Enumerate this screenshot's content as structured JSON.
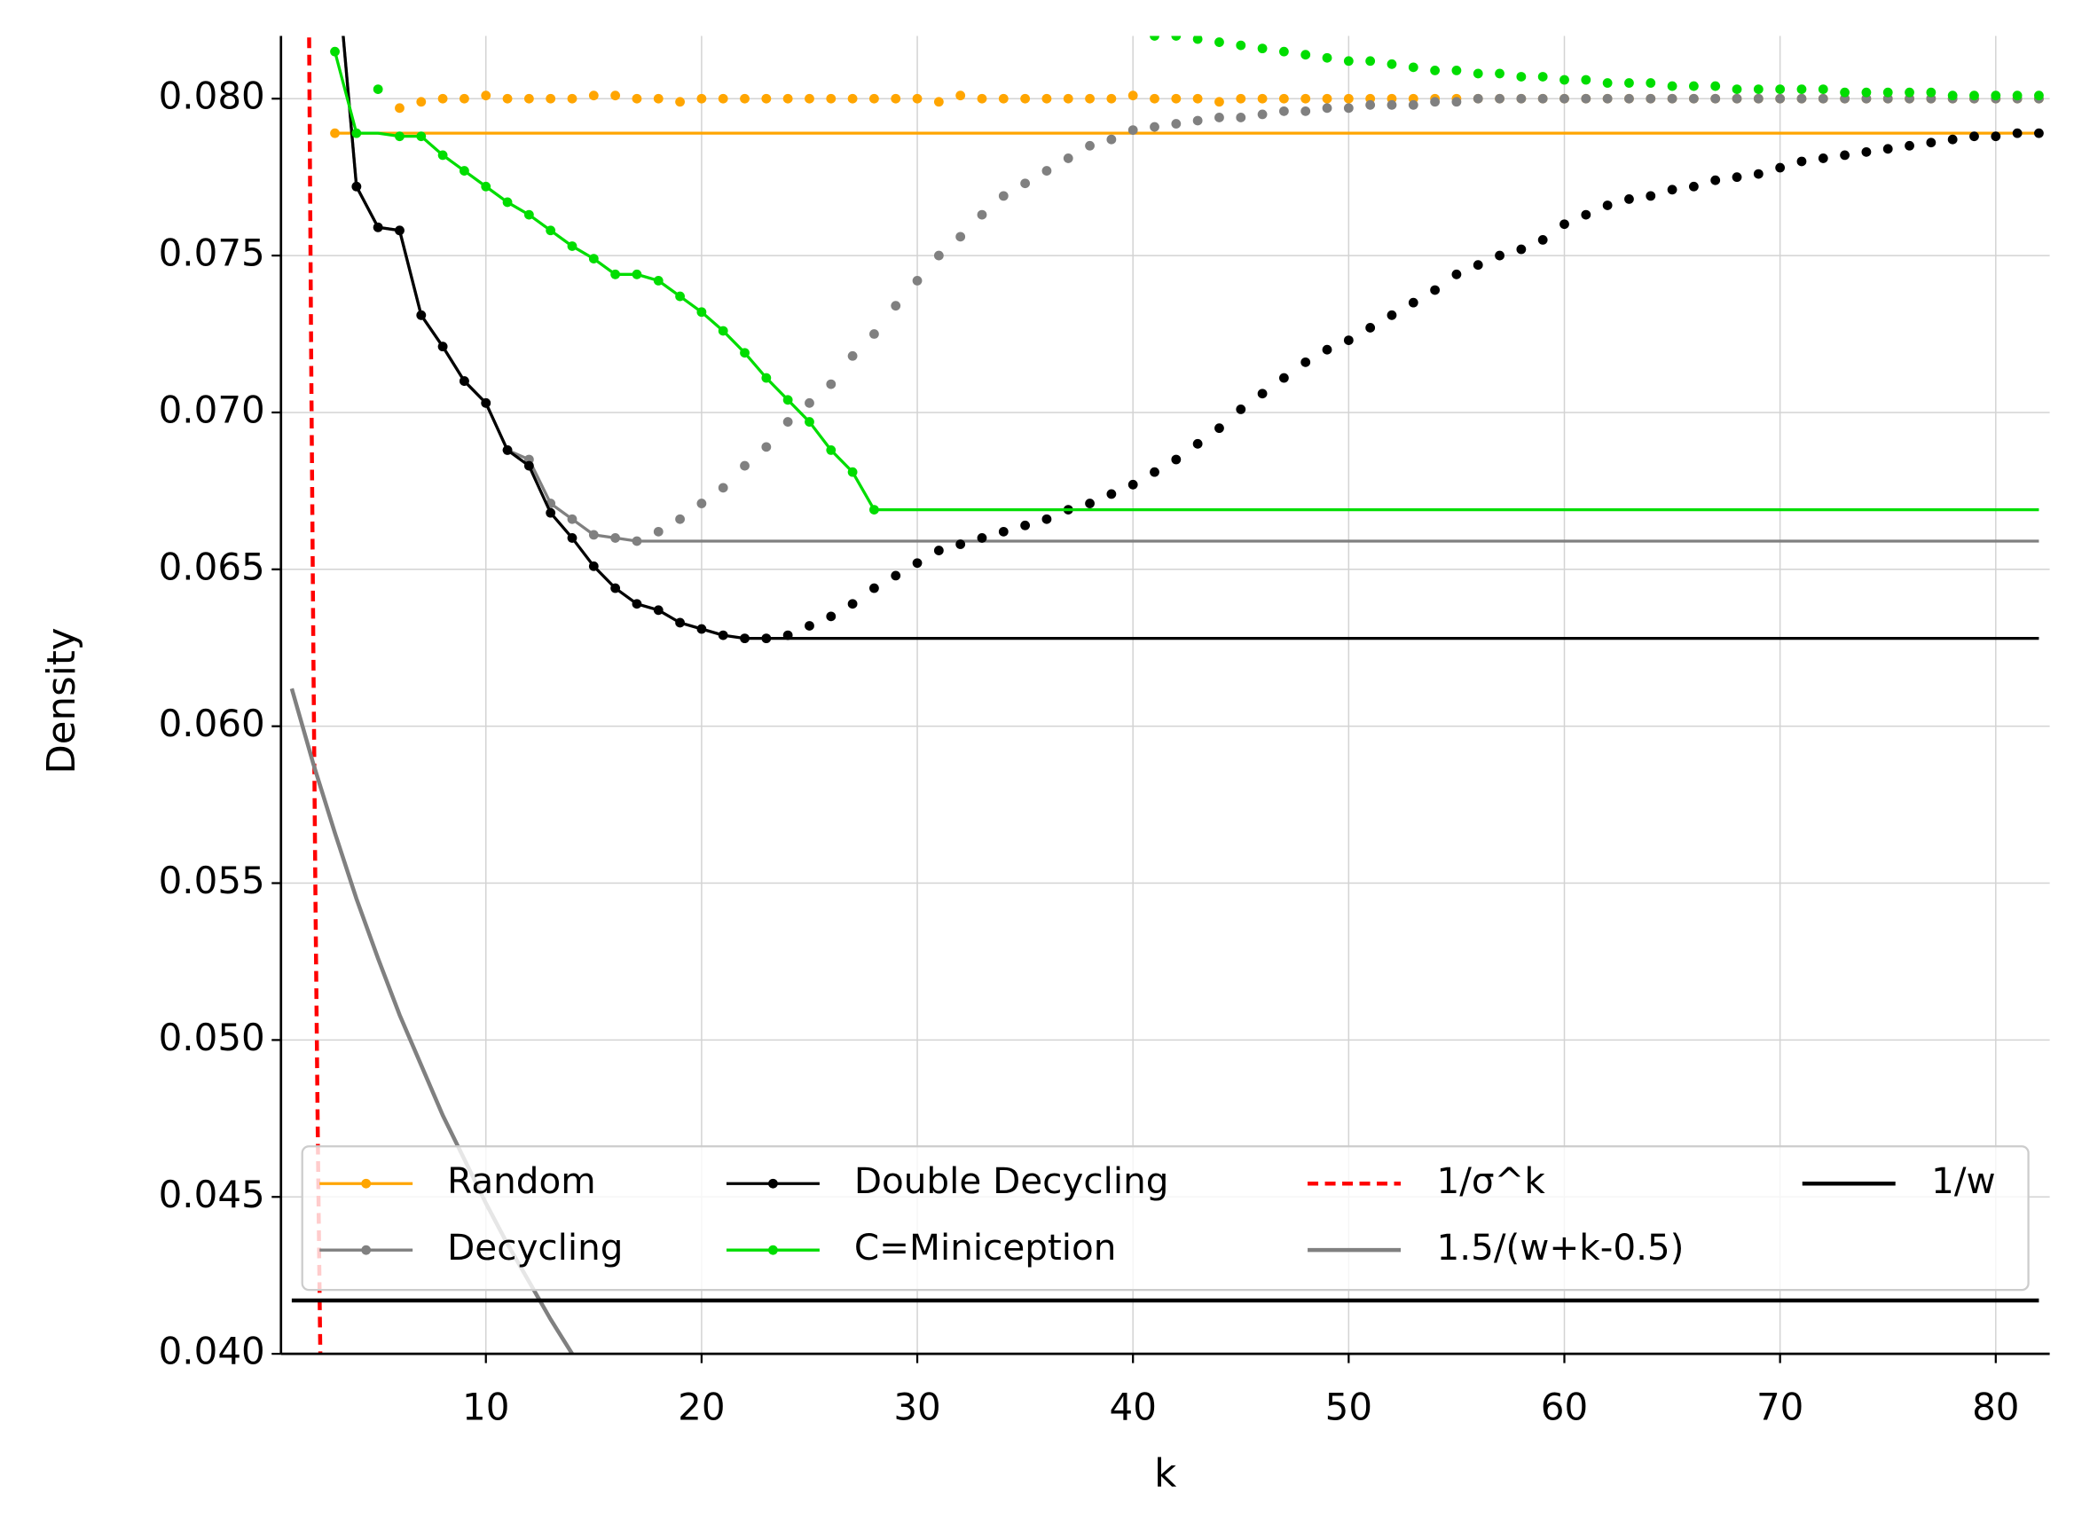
{
  "chart_data": {
    "type": "line",
    "xlabel": "k",
    "ylabel": "Density",
    "xlim": [
      0.5,
      82.5
    ],
    "ylim": [
      0.04,
      0.082
    ],
    "xticks": [
      10,
      20,
      30,
      40,
      50,
      60,
      70,
      80
    ],
    "yticks": [
      {
        "value": 0.04,
        "label": "0.040"
      },
      {
        "value": 0.045,
        "label": "0.045"
      },
      {
        "value": 0.05,
        "label": "0.050"
      },
      {
        "value": 0.055,
        "label": "0.055"
      },
      {
        "value": 0.06,
        "label": "0.060"
      },
      {
        "value": 0.065,
        "label": "0.065"
      },
      {
        "value": 0.07,
        "label": "0.070"
      },
      {
        "value": 0.075,
        "label": "0.075"
      },
      {
        "value": 0.08,
        "label": "0.080"
      }
    ],
    "grid": true,
    "legend": "lower center",
    "legend_columns": 4,
    "x": [
      3,
      4,
      5,
      6,
      7,
      8,
      9,
      10,
      11,
      12,
      13,
      14,
      15,
      16,
      17,
      18,
      19,
      20,
      21,
      22,
      23,
      24,
      25,
      26,
      27,
      28,
      29,
      30,
      31,
      32,
      33,
      34,
      35,
      36,
      37,
      38,
      39,
      40,
      41,
      42,
      43,
      44,
      45,
      46,
      47,
      48,
      49,
      50,
      51,
      52,
      53,
      54,
      55,
      56,
      57,
      58,
      59,
      60,
      61,
      62,
      63,
      64,
      65,
      66,
      67,
      68,
      69,
      70,
      71,
      72,
      73,
      74,
      75,
      76,
      77,
      78,
      79,
      80,
      81,
      82
    ],
    "series": [
      {
        "name": "Random",
        "color": "#ffa500",
        "style": "markers",
        "values": [
          0.0789,
          null,
          null,
          0.0797,
          0.0799,
          0.08,
          0.08,
          0.0801,
          0.08,
          0.08,
          0.08,
          0.08,
          0.0801,
          0.0801,
          0.08,
          0.08,
          0.0799,
          0.08,
          0.08,
          0.08,
          0.08,
          0.08,
          0.08,
          0.08,
          0.08,
          0.08,
          0.08,
          0.08,
          0.0799,
          0.0801,
          0.08,
          0.08,
          0.08,
          0.08,
          0.08,
          0.08,
          0.08,
          0.0801,
          0.08,
          0.08,
          0.08,
          0.0799,
          0.08,
          0.08,
          0.08,
          0.08,
          0.08,
          0.08,
          0.08,
          0.08,
          0.08,
          0.08,
          0.08,
          0.08,
          0.08,
          0.08,
          0.08,
          0.08,
          0.08,
          0.08,
          0.08,
          0.08,
          0.08,
          0.08,
          0.08,
          0.08,
          0.08,
          0.08,
          0.08,
          0.08,
          0.08,
          0.08,
          0.08,
          0.08,
          0.08,
          0.08,
          0.08,
          0.08,
          0.08,
          0.08
        ],
        "min_line": {
          "x": [
            3,
            82
          ],
          "values": [
            0.0789,
            0.0789
          ]
        }
      },
      {
        "name": "Decycling",
        "color": "#808080",
        "style": "markers",
        "values": [
          0.085,
          0.0772,
          0.0759,
          0.0758,
          0.0731,
          0.0721,
          0.071,
          0.0703,
          0.0688,
          0.0685,
          0.0671,
          0.0666,
          0.0661,
          0.066,
          0.0659,
          0.0662,
          0.0666,
          0.0671,
          0.0676,
          0.0683,
          0.0689,
          0.0697,
          0.0703,
          0.0709,
          0.0718,
          0.0725,
          0.0734,
          0.0742,
          0.075,
          0.0756,
          0.0763,
          0.0769,
          0.0773,
          0.0777,
          0.0781,
          0.0785,
          0.0787,
          0.079,
          0.0791,
          0.0792,
          0.0793,
          0.0794,
          0.0794,
          0.0795,
          0.0796,
          0.0796,
          0.0797,
          0.0797,
          0.0798,
          0.0798,
          0.0798,
          0.0799,
          0.0799,
          0.08,
          0.08,
          0.08,
          0.08,
          0.08,
          0.08,
          0.08,
          0.08,
          0.08,
          0.08,
          0.08,
          0.08,
          0.08,
          0.08,
          0.08,
          0.08,
          0.08,
          0.08,
          0.08,
          0.08,
          0.08,
          0.08,
          0.08,
          0.08,
          0.08,
          0.08,
          0.08
        ],
        "min_line": {
          "x": [
            3,
            4,
            5,
            6,
            7,
            8,
            9,
            10,
            11,
            12,
            13,
            14,
            15,
            16,
            17,
            82
          ],
          "values": [
            0.085,
            0.0772,
            0.0759,
            0.0758,
            0.0731,
            0.0721,
            0.071,
            0.0703,
            0.0688,
            0.0685,
            0.0671,
            0.0666,
            0.0661,
            0.066,
            0.0659,
            0.0659
          ]
        }
      },
      {
        "name": "Double Decycling",
        "color": "#000000",
        "style": "markers",
        "values": [
          0.085,
          0.0772,
          0.0759,
          0.0758,
          0.0731,
          0.0721,
          0.071,
          0.0703,
          0.0688,
          0.0683,
          0.0668,
          0.066,
          0.0651,
          0.0644,
          0.0639,
          0.0637,
          0.0633,
          0.0631,
          0.0629,
          0.0628,
          0.0628,
          0.0629,
          0.0632,
          0.0635,
          0.0639,
          0.0644,
          0.0648,
          0.0652,
          0.0656,
          0.0658,
          0.066,
          0.0662,
          0.0664,
          0.0666,
          0.0669,
          0.0671,
          0.0674,
          0.0677,
          0.0681,
          0.0685,
          0.069,
          0.0695,
          0.0701,
          0.0706,
          0.0711,
          0.0716,
          0.072,
          0.0723,
          0.0727,
          0.0731,
          0.0735,
          0.0739,
          0.0744,
          0.0747,
          0.075,
          0.0752,
          0.0755,
          0.076,
          0.0763,
          0.0766,
          0.0768,
          0.0769,
          0.0771,
          0.0772,
          0.0774,
          0.0775,
          0.0776,
          0.0778,
          0.078,
          0.0781,
          0.0782,
          0.0783,
          0.0784,
          0.0785,
          0.0786,
          0.0787,
          0.0788,
          0.0788,
          0.0789,
          0.0789
        ],
        "min_line": {
          "x": [
            3,
            4,
            5,
            6,
            7,
            8,
            9,
            10,
            11,
            12,
            13,
            14,
            15,
            16,
            17,
            18,
            19,
            20,
            21,
            22,
            23,
            82
          ],
          "values": [
            0.085,
            0.0772,
            0.0759,
            0.0758,
            0.0731,
            0.0721,
            0.071,
            0.0703,
            0.0688,
            0.0683,
            0.0668,
            0.066,
            0.0651,
            0.0644,
            0.0639,
            0.0637,
            0.0633,
            0.0631,
            0.0629,
            0.0628,
            0.0628,
            0.0628
          ]
        }
      },
      {
        "name": "C=Miniception",
        "color": "#00dd00",
        "style": "markers",
        "values": [
          0.0815,
          0.0789,
          0.0803,
          0.0788,
          0.0788,
          0.0782,
          0.0777,
          0.0772,
          0.0767,
          0.0763,
          0.0758,
          0.0753,
          0.0749,
          0.0744,
          0.0744,
          0.0742,
          0.0737,
          0.0732,
          0.0726,
          0.0719,
          0.0711,
          0.0704,
          0.0697,
          0.0688,
          0.0681,
          0.0669,
          null,
          null,
          null,
          null,
          null,
          null,
          null,
          null,
          null,
          null,
          null,
          null,
          0.082,
          0.082,
          0.0819,
          0.0818,
          0.0817,
          0.0816,
          0.0815,
          0.0814,
          0.0813,
          0.0812,
          0.0812,
          0.0811,
          0.081,
          0.0809,
          0.0809,
          0.0808,
          0.0808,
          0.0807,
          0.0807,
          0.0806,
          0.0806,
          0.0805,
          0.0805,
          0.0805,
          0.0804,
          0.0804,
          0.0804,
          0.0803,
          0.0803,
          0.0803,
          0.0803,
          0.0803,
          0.0802,
          0.0802,
          0.0802,
          0.0802,
          0.0802,
          0.0801,
          0.0801,
          0.0801,
          0.0801,
          0.0801
        ],
        "min_line": {
          "x": [
            3,
            4,
            5,
            6,
            7,
            8,
            9,
            10,
            11,
            12,
            13,
            14,
            15,
            16,
            17,
            18,
            19,
            20,
            21,
            22,
            23,
            24,
            25,
            26,
            27,
            28,
            82
          ],
          "values": [
            0.0815,
            0.0789,
            0.0789,
            0.0788,
            0.0788,
            0.0782,
            0.0777,
            0.0772,
            0.0767,
            0.0763,
            0.0758,
            0.0753,
            0.0749,
            0.0744,
            0.0744,
            0.0742,
            0.0737,
            0.0732,
            0.0726,
            0.0719,
            0.0711,
            0.0704,
            0.0697,
            0.0688,
            0.0681,
            0.0669,
            0.0669
          ]
        }
      },
      {
        "name": "1/σ^k",
        "color": "#ff0000",
        "style": "dashed",
        "x": [
          1.8,
          1.9,
          2.0,
          2.1,
          2.2,
          2.3,
          2.4
        ],
        "values": [
          0.0825,
          0.0718,
          0.0625,
          0.0544,
          0.0474,
          0.0413,
          0.0359
        ]
      },
      {
        "name": "1.5/(w+k-0.5)",
        "color": "#808080",
        "style": "solid",
        "x": [
          1,
          2,
          3,
          4,
          5,
          6,
          7,
          8,
          9,
          10,
          11,
          12,
          13,
          14
        ],
        "values": [
          0.0612,
          0.0588,
          0.0566,
          0.0545,
          0.0526,
          0.0508,
          0.0492,
          0.0476,
          0.0462,
          0.0448,
          0.0435,
          0.0423,
          0.0411,
          0.04
        ]
      },
      {
        "name": "1/w",
        "color": "#000000",
        "style": "solid",
        "x": [
          1,
          82
        ],
        "values": [
          0.0417,
          0.0417
        ]
      }
    ]
  }
}
